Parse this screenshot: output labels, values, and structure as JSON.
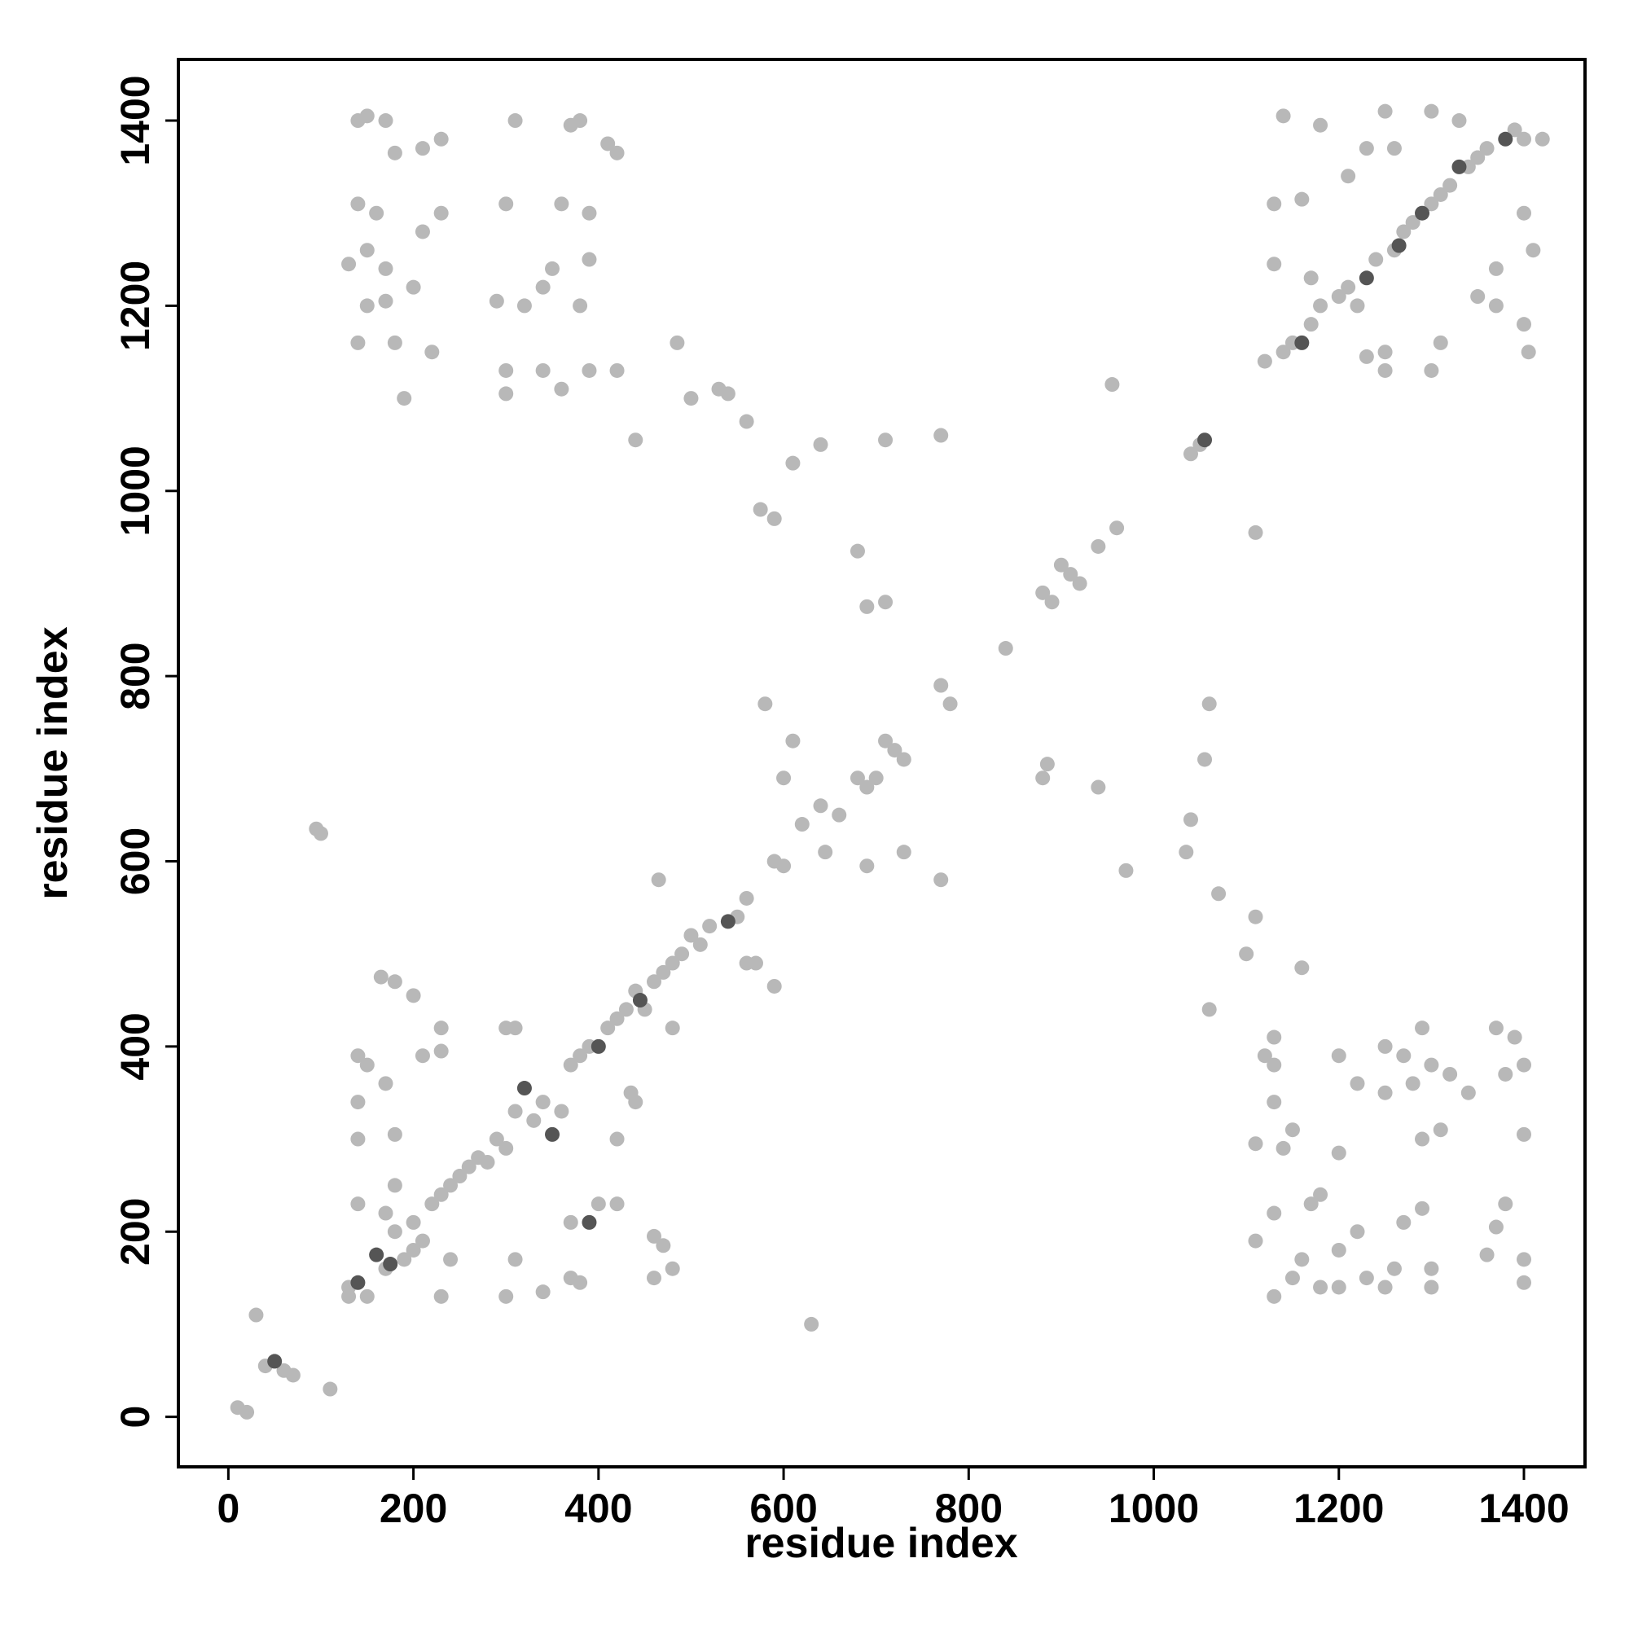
{
  "chart_data": {
    "type": "scatter",
    "xlabel": "residue index",
    "ylabel": "residue index",
    "xlim": [
      -54,
      1466
    ],
    "ylim": [
      -54,
      1466
    ],
    "xticks": [
      0,
      200,
      400,
      600,
      800,
      1000,
      1200,
      1400
    ],
    "yticks": [
      0,
      200,
      400,
      600,
      800,
      1000,
      1200,
      1400
    ],
    "series": [
      {
        "color": "#b8b8b8",
        "x": [
          10,
          20,
          30,
          40,
          60,
          70,
          110,
          130,
          150,
          170,
          180,
          190,
          200,
          210,
          220,
          230,
          240,
          250,
          260,
          270,
          280,
          290,
          300,
          310,
          330,
          340,
          360,
          370,
          380,
          390,
          410,
          420,
          430,
          440,
          460,
          470,
          480,
          490,
          500,
          510,
          520,
          550,
          560,
          570,
          580,
          590,
          600,
          610,
          620,
          640,
          660,
          680,
          690,
          700,
          710,
          720,
          730,
          770,
          780,
          840,
          880,
          890,
          900,
          910,
          920,
          940,
          960,
          1040,
          1050,
          1120,
          1140,
          1150,
          1170,
          1180,
          1200,
          1210,
          1220,
          1240,
          1260,
          1270,
          1280,
          1300,
          1310,
          1320,
          1340,
          1350,
          1360,
          1390,
          1400,
          575,
          590,
          610,
          640,
          680,
          690,
          710,
          770,
          710,
          440,
          500,
          530,
          540,
          560,
          485,
          955,
          1110,
          1060,
          1055,
          1040,
          1035,
          1060,
          1070,
          1110,
          1100,
          1160,
          970,
          940,
          880,
          885,
          770,
          730,
          690,
          645,
          600,
          630,
          95,
          100,
          140,
          150,
          170,
          180,
          210,
          230,
          310,
          370,
          380,
          410,
          420,
          140,
          160,
          230,
          300,
          360,
          390,
          130,
          150,
          170,
          210,
          290,
          320,
          350,
          390,
          150,
          170,
          200,
          340,
          380,
          140,
          180,
          220,
          300,
          340,
          390,
          420,
          190,
          300,
          360,
          1140,
          1180,
          1230,
          1250,
          1300,
          1330,
          1130,
          1160,
          1210,
          1260,
          1400,
          1410,
          1370,
          1130,
          1170,
          1250,
          1250,
          1230,
          1300,
          1310,
          1370,
          1400,
          1405,
          1350,
          1420,
          1130,
          1130,
          1120,
          1130,
          1150,
          1140,
          1110,
          1110,
          1130,
          1170,
          1180,
          1130,
          1160,
          1200,
          1200,
          1200,
          1220,
          1250,
          1250,
          1270,
          1280,
          1200,
          1290,
          1300,
          1320,
          1290,
          1310,
          1340,
          1370,
          1390,
          1400,
          1380,
          1400,
          1380,
          1370,
          1360,
          1400,
          1400,
          1290,
          1270,
          1300,
          1300,
          1250,
          1260,
          1230,
          1220,
          1180,
          1150,
          165,
          180,
          200,
          230,
          210,
          140,
          150,
          170,
          140,
          140,
          180,
          230,
          140,
          180,
          170,
          130,
          200,
          230,
          240,
          300,
          310,
          300,
          340,
          310,
          370,
          400,
          420,
          460,
          470,
          480,
          460,
          370,
          380,
          420,
          440,
          435,
          450,
          480,
          590,
          465,
          560
        ],
        "y": [
          10,
          5,
          110,
          55,
          50,
          45,
          30,
          140,
          130,
          160,
          200,
          170,
          210,
          190,
          230,
          240,
          250,
          260,
          270,
          280,
          275,
          300,
          290,
          330,
          320,
          340,
          330,
          380,
          390,
          400,
          420,
          430,
          440,
          460,
          470,
          480,
          490,
          500,
          520,
          510,
          530,
          540,
          560,
          490,
          770,
          600,
          690,
          730,
          640,
          660,
          650,
          690,
          680,
          690,
          730,
          720,
          710,
          790,
          770,
          830,
          890,
          880,
          920,
          910,
          900,
          940,
          960,
          1040,
          1050,
          1140,
          1150,
          1160,
          1180,
          1200,
          1210,
          1220,
          1200,
          1250,
          1260,
          1280,
          1290,
          1310,
          1320,
          1330,
          1350,
          1360,
          1370,
          1390,
          1380,
          980,
          970,
          1030,
          1050,
          935,
          875,
          880,
          1060,
          1055,
          1055,
          1100,
          1110,
          1105,
          1075,
          1160,
          1115,
          955,
          770,
          710,
          645,
          610,
          440,
          565,
          540,
          500,
          485,
          590,
          680,
          690,
          705,
          580,
          610,
          595,
          610,
          595,
          100,
          635,
          630,
          1400,
          1405,
          1400,
          1365,
          1370,
          1380,
          1400,
          1395,
          1400,
          1375,
          1365,
          1310,
          1300,
          1300,
          1310,
          1310,
          1300,
          1245,
          1260,
          1240,
          1280,
          1205,
          1200,
          1240,
          1250,
          1200,
          1205,
          1220,
          1220,
          1200,
          1160,
          1160,
          1150,
          1130,
          1130,
          1130,
          1130,
          1100,
          1105,
          1110,
          1405,
          1395,
          1370,
          1410,
          1410,
          1400,
          1310,
          1315,
          1340,
          1370,
          1300,
          1260,
          1240,
          1245,
          1230,
          1150,
          1130,
          1145,
          1130,
          1160,
          1200,
          1180,
          1150,
          1210,
          1380,
          410,
          380,
          390,
          340,
          310,
          290,
          295,
          190,
          220,
          230,
          240,
          130,
          170,
          180,
          140,
          390,
          360,
          350,
          400,
          390,
          360,
          285,
          420,
          380,
          370,
          300,
          310,
          350,
          420,
          410,
          380,
          370,
          305,
          230,
          205,
          175,
          170,
          145,
          225,
          210,
          160,
          140,
          140,
          160,
          150,
          200,
          140,
          150,
          475,
          470,
          455,
          420,
          390,
          390,
          380,
          360,
          340,
          300,
          305,
          395,
          230,
          250,
          220,
          130,
          180,
          130,
          170,
          420,
          420,
          130,
          135,
          170,
          210,
          230,
          230,
          195,
          185,
          160,
          150,
          150,
          145,
          300,
          340,
          350,
          440,
          420,
          465,
          580,
          490
        ]
      },
      {
        "color": "#555555",
        "x": [
          50,
          160,
          175,
          140,
          320,
          350,
          400,
          445,
          540,
          1055,
          1230,
          1265,
          1290,
          1160,
          1330,
          1380,
          390
        ],
        "y": [
          60,
          175,
          165,
          145,
          355,
          305,
          400,
          450,
          535,
          1055,
          1230,
          1265,
          1300,
          1160,
          1350,
          1380,
          210
        ]
      }
    ]
  }
}
